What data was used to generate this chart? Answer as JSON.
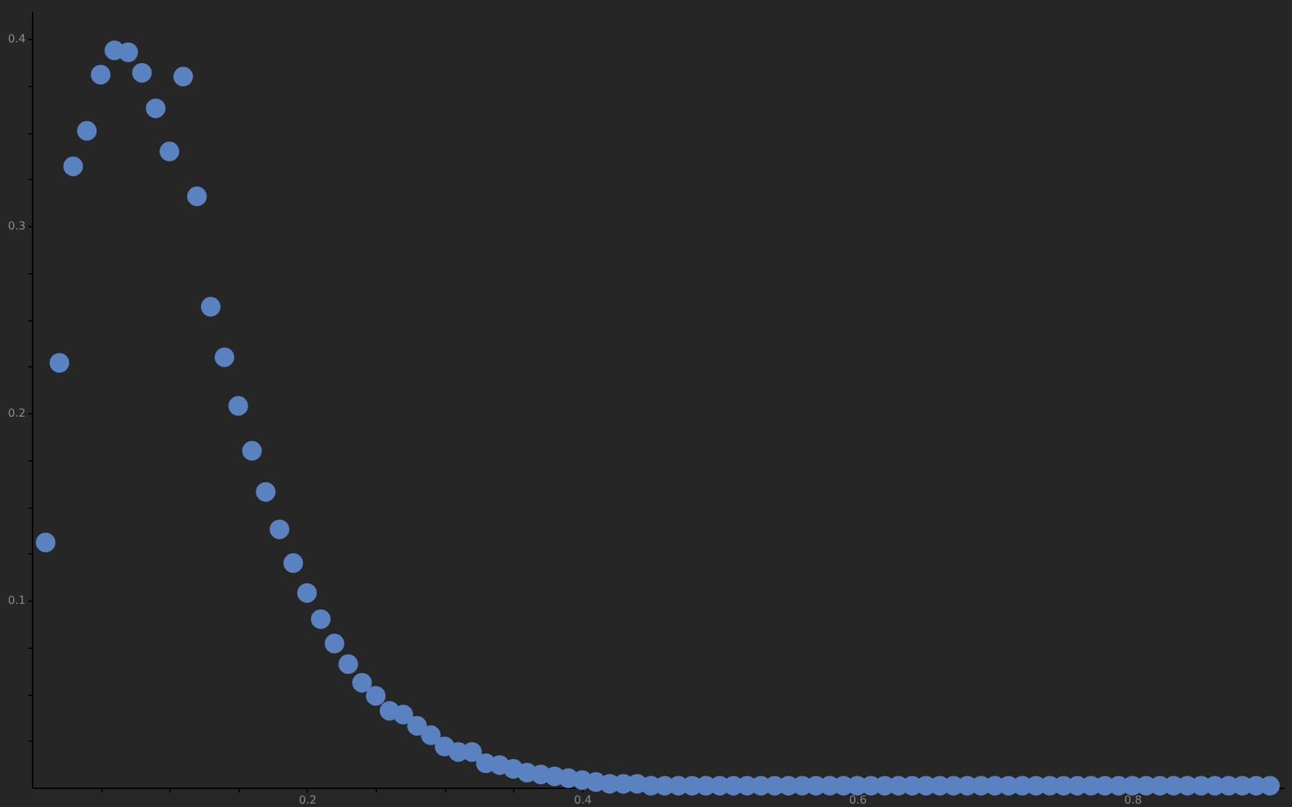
{
  "chart_data": {
    "type": "scatter",
    "marker": "circle",
    "grid": false,
    "xlim": [
      0,
      0.91
    ],
    "ylim": [
      0,
      0.415
    ],
    "xticks": [
      {
        "value": 0.05,
        "label": null
      },
      {
        "value": 0.1,
        "label": null
      },
      {
        "value": 0.15,
        "label": null
      },
      0.2,
      {
        "value": 0.25,
        "label": null
      },
      {
        "value": 0.3,
        "label": null
      },
      {
        "value": 0.35,
        "label": null
      },
      0.4,
      {
        "value": 0.45,
        "label": null
      },
      {
        "value": 0.5,
        "label": null
      },
      {
        "value": 0.55,
        "label": null
      },
      0.6,
      {
        "value": 0.65,
        "label": null
      },
      {
        "value": 0.7,
        "label": null
      },
      {
        "value": 0.75,
        "label": null
      },
      0.8,
      {
        "value": 0.85,
        "label": null
      },
      {
        "value": 0.9,
        "label": null
      }
    ],
    "yticks": [
      {
        "value": 0.025,
        "label": null
      },
      {
        "value": 0.05,
        "label": null
      },
      {
        "value": 0.075,
        "label": null
      },
      0.1,
      {
        "value": 0.125,
        "label": null
      },
      {
        "value": 0.15,
        "label": null
      },
      {
        "value": 0.175,
        "label": null
      },
      0.2,
      {
        "value": 0.225,
        "label": null
      },
      {
        "value": 0.25,
        "label": null
      },
      {
        "value": 0.275,
        "label": null
      },
      0.3,
      {
        "value": 0.325,
        "label": null
      },
      {
        "value": 0.35,
        "label": null
      },
      {
        "value": 0.375,
        "label": null
      },
      0.4
    ],
    "series": [
      {
        "color": "#5b82c0",
        "x": [
          0.01,
          0.02,
          0.03,
          0.04,
          0.05,
          0.06,
          0.07,
          0.08,
          0.09,
          0.1,
          0.11,
          0.12,
          0.13,
          0.14,
          0.15,
          0.16,
          0.17,
          0.18,
          0.19,
          0.2,
          0.21,
          0.22,
          0.23,
          0.24,
          0.25,
          0.26,
          0.27,
          0.28,
          0.29,
          0.3,
          0.31,
          0.32,
          0.33,
          0.34,
          0.35,
          0.36,
          0.37,
          0.38,
          0.39,
          0.4,
          0.41,
          0.42,
          0.43,
          0.44,
          0.45,
          0.46,
          0.47,
          0.48,
          0.49,
          0.5,
          0.51,
          0.52,
          0.53,
          0.54,
          0.55,
          0.56,
          0.57,
          0.58,
          0.59,
          0.6,
          0.61,
          0.62,
          0.63,
          0.64,
          0.65,
          0.66,
          0.67,
          0.68,
          0.69,
          0.7,
          0.71,
          0.72,
          0.73,
          0.74,
          0.75,
          0.76,
          0.77,
          0.78,
          0.79,
          0.8,
          0.81,
          0.82,
          0.83,
          0.84,
          0.85,
          0.86,
          0.87,
          0.88,
          0.89,
          0.9
        ],
        "values": [
          0.131,
          0.227,
          0.332,
          0.351,
          0.381,
          0.394,
          0.393,
          0.382,
          0.363,
          0.34,
          0.38,
          0.316,
          0.257,
          0.23,
          0.204,
          0.18,
          0.158,
          0.138,
          0.12,
          0.104,
          0.09,
          0.077,
          0.066,
          0.056,
          0.049,
          0.041,
          0.039,
          0.033,
          0.028,
          0.022,
          0.019,
          0.019,
          0.013,
          0.012,
          0.01,
          0.008,
          0.007,
          0.006,
          0.005,
          0.004,
          0.003,
          0.002,
          0.002,
          0.002,
          0.001,
          0.001,
          0.001,
          0.001,
          0.001,
          0.001,
          0.001,
          0.001,
          0.001,
          0.001,
          0.001,
          0.001,
          0.001,
          0.001,
          0.001,
          0.001,
          0.001,
          0.001,
          0.001,
          0.001,
          0.001,
          0.001,
          0.001,
          0.001,
          0.001,
          0.001,
          0.001,
          0.001,
          0.001,
          0.001,
          0.001,
          0.001,
          0.001,
          0.001,
          0.001,
          0.001,
          0.001,
          0.001,
          0.001,
          0.001,
          0.001,
          0.001,
          0.001,
          0.001,
          0.001,
          0.001
        ]
      }
    ]
  }
}
